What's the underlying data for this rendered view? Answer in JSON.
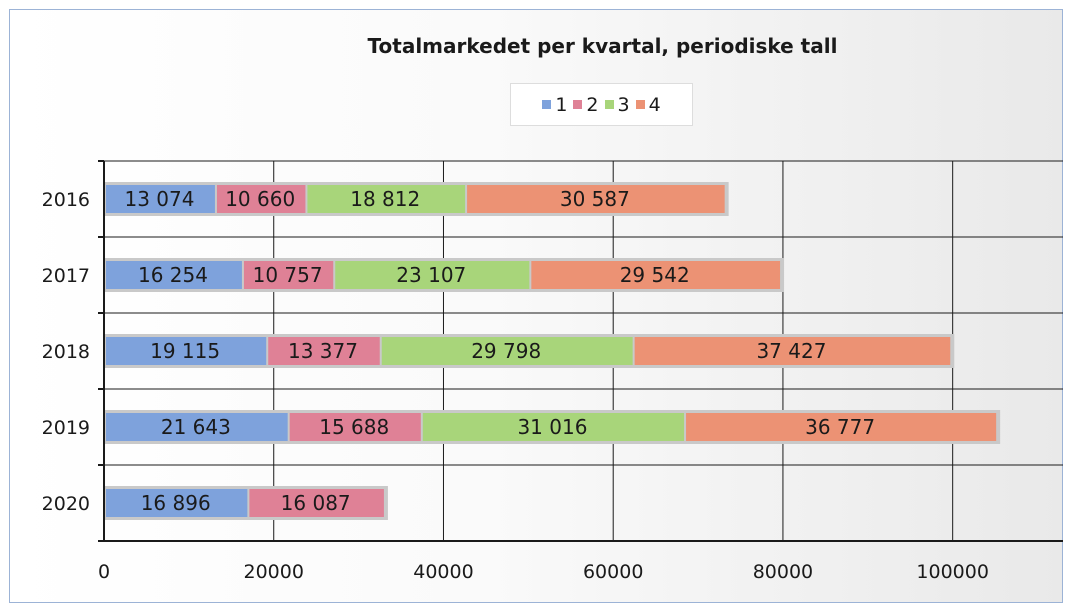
{
  "chart_data": {
    "type": "bar",
    "orientation": "horizontal",
    "stacked": true,
    "title": "Totalmarkedet per kvartal, periodiske tall",
    "categories": [
      "2016",
      "2017",
      "2018",
      "2019",
      "2020"
    ],
    "series": [
      {
        "name": "1",
        "color": "#7ea2dc",
        "values": [
          13074,
          16254,
          19115,
          21643,
          16896
        ],
        "labels": [
          "13 074",
          "16 254",
          "19 115",
          "21 643",
          "16 896"
        ]
      },
      {
        "name": "2",
        "color": "#df8196",
        "values": [
          10660,
          10757,
          13377,
          15688,
          16087
        ],
        "labels": [
          "10 660",
          "10 757",
          "13 377",
          "15 688",
          "16 087"
        ]
      },
      {
        "name": "3",
        "color": "#a8d57a",
        "values": [
          18812,
          23107,
          29798,
          31016,
          null
        ],
        "labels": [
          "18 812",
          "23 107",
          "29 798",
          "31 016",
          ""
        ]
      },
      {
        "name": "4",
        "color": "#ec9274",
        "values": [
          30587,
          29542,
          37427,
          36777,
          null
        ],
        "labels": [
          "30 587",
          "29 542",
          "37 427",
          "36 777",
          ""
        ]
      }
    ],
    "xlim": [
      0,
      113000
    ],
    "xticks": [
      0,
      20000,
      40000,
      60000,
      80000,
      100000
    ],
    "xtick_labels": [
      "0",
      "20000",
      "40000",
      "60000",
      "80000",
      "100000"
    ],
    "grid": "vertical",
    "legend_position": "top-center",
    "xlabel": "",
    "ylabel": ""
  }
}
